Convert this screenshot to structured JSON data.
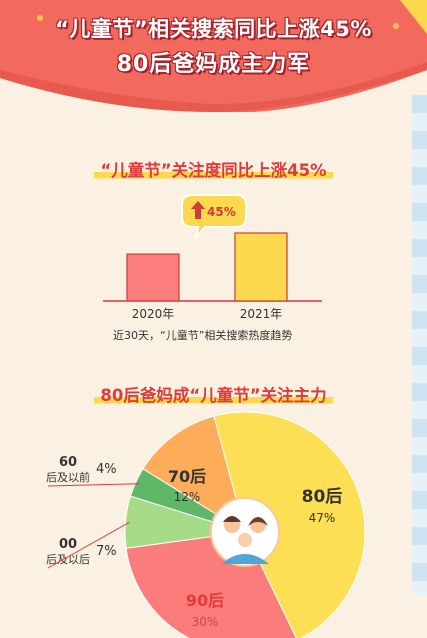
{
  "header": {
    "headline1": "“儿童节”相关搜索同比上涨45%",
    "headline2": "80后爸妈成主力军"
  },
  "bar_section": {
    "title": "“儿童节”关注度同比上涨45%",
    "growth_badge": "45%",
    "caption": "近30天，“儿童节”相关搜索热度趋势"
  },
  "pie_section": {
    "title": "80后爸妈成“儿童节”关注主力"
  },
  "colors": {
    "banner_red": "#f26a5e",
    "title_red": "#e23a3a",
    "highlight_yellow": "#fbd94a",
    "bar_2020": "#fb7e7c",
    "bar_2021": "#fcd84e",
    "bar_border": "#d23a3a",
    "slice_80": "#fcdf55",
    "slice_90": "#fb7d7b",
    "slice_00": "#a6dc87",
    "slice_60": "#5eb867",
    "slice_70": "#fdad59"
  },
  "chart_data": [
    {
      "type": "bar",
      "categories": [
        "2020年",
        "2021年"
      ],
      "values": [
        100,
        145
      ],
      "title": "“儿童节”关注度同比上涨45%",
      "xlabel": "",
      "ylabel": ""
    },
    {
      "type": "pie",
      "title": "80后爸妈成“儿童节”关注主力",
      "slices": [
        {
          "label": "80后",
          "value": 47,
          "value_label": "47%",
          "color": "#fcdf55"
        },
        {
          "label": "90后",
          "value": 30,
          "value_label": "30%",
          "color": "#fb7d7b"
        },
        {
          "label": "00后及以后",
          "value": 7,
          "value_label": "7%",
          "color": "#a6dc87"
        },
        {
          "label": "60后及以前",
          "value": 4,
          "value_label": "4%",
          "color": "#5eb867"
        },
        {
          "label": "70后",
          "value": 12,
          "value_label": "12%",
          "color": "#fdad59"
        }
      ]
    }
  ]
}
